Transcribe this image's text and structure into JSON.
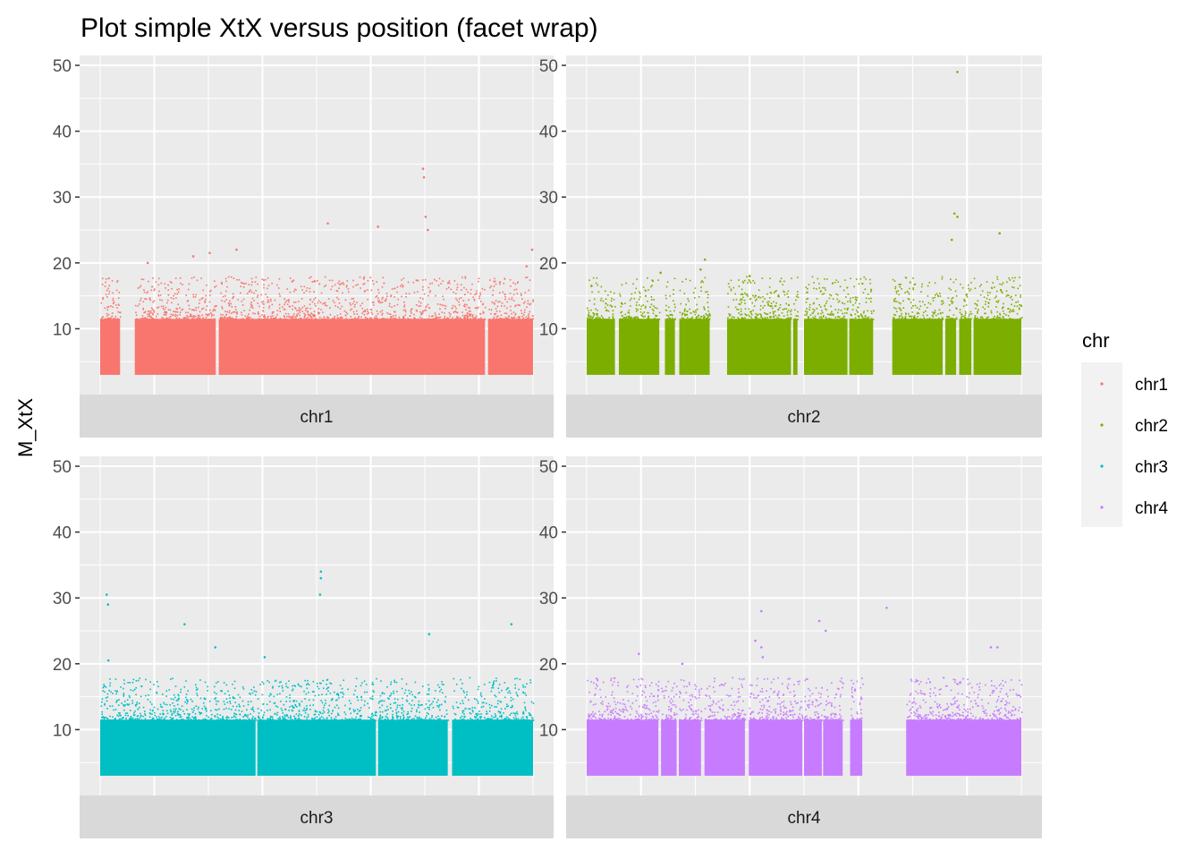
{
  "chart_data": {
    "type": "scatter",
    "title": "Plot simple XtX versus position (facet wrap)",
    "xlabel": "",
    "ylabel": "M_XtX",
    "ylim": [
      0,
      51.5
    ],
    "yticks": [
      10,
      20,
      30,
      40,
      50
    ],
    "x_tick_labels_shown": false,
    "grid": true,
    "facet_strip_position": "bottom",
    "legend": {
      "title": "chr",
      "placement": "right",
      "entries": [
        "chr1",
        "chr2",
        "chr3",
        "chr4"
      ]
    },
    "facets": [
      {
        "name": "chr1",
        "color": "#F8766D",
        "x_segments": [
          [
            0.0,
            0.046
          ],
          [
            0.08,
            0.267
          ],
          [
            0.274,
            0.889
          ],
          [
            0.896,
            1.0
          ]
        ],
        "baseline_range": [
          3.0,
          11.5
        ],
        "notable_points": [
          {
            "x": 0.746,
            "y": 34.3
          },
          {
            "x": 0.748,
            "y": 33.0
          },
          {
            "x": 0.752,
            "y": 27.0
          },
          {
            "x": 0.757,
            "y": 25.0
          },
          {
            "x": 0.526,
            "y": 26.0
          },
          {
            "x": 0.642,
            "y": 25.5
          },
          {
            "x": 0.253,
            "y": 21.5
          },
          {
            "x": 0.315,
            "y": 22.0
          },
          {
            "x": 0.215,
            "y": 21.0
          },
          {
            "x": 0.11,
            "y": 20.0
          },
          {
            "x": 0.998,
            "y": 22.0
          },
          {
            "x": 0.985,
            "y": 19.5
          }
        ]
      },
      {
        "name": "chr2",
        "color": "#7CAE00",
        "x_segments": [
          [
            0.0,
            0.065
          ],
          [
            0.074,
            0.167
          ],
          [
            0.18,
            0.203
          ],
          [
            0.213,
            0.283
          ],
          [
            0.323,
            0.47
          ],
          [
            0.475,
            0.485
          ],
          [
            0.5,
            0.6
          ],
          [
            0.604,
            0.659
          ],
          [
            0.703,
            0.819
          ],
          [
            0.825,
            0.85
          ],
          [
            0.857,
            0.885
          ],
          [
            0.89,
            1.0
          ]
        ],
        "baseline_range": [
          3.0,
          11.5
        ],
        "notable_points": [
          {
            "x": 0.853,
            "y": 49.0
          },
          {
            "x": 0.846,
            "y": 27.5
          },
          {
            "x": 0.853,
            "y": 27.0
          },
          {
            "x": 0.84,
            "y": 23.5
          },
          {
            "x": 0.95,
            "y": 24.5
          },
          {
            "x": 0.272,
            "y": 20.5
          },
          {
            "x": 0.262,
            "y": 19.0
          },
          {
            "x": 0.17,
            "y": 18.5
          },
          {
            "x": 0.011,
            "y": 16.5
          },
          {
            "x": 0.375,
            "y": 18.0
          }
        ]
      },
      {
        "name": "chr3",
        "color": "#00BFC4",
        "x_segments": [
          [
            0.0,
            0.359
          ],
          [
            0.363,
            0.637
          ],
          [
            0.642,
            0.803
          ],
          [
            0.813,
            1.0
          ]
        ],
        "baseline_range": [
          3.0,
          11.5
        ],
        "notable_points": [
          {
            "x": 0.51,
            "y": 34.0
          },
          {
            "x": 0.51,
            "y": 33.0
          },
          {
            "x": 0.508,
            "y": 30.5
          },
          {
            "x": 0.015,
            "y": 30.5
          },
          {
            "x": 0.018,
            "y": 29.0
          },
          {
            "x": 0.195,
            "y": 26.0
          },
          {
            "x": 0.95,
            "y": 26.0
          },
          {
            "x": 0.266,
            "y": 22.5
          },
          {
            "x": 0.76,
            "y": 24.5
          },
          {
            "x": 0.019,
            "y": 20.5
          },
          {
            "x": 0.38,
            "y": 21.0
          }
        ]
      },
      {
        "name": "chr4",
        "color": "#C77CFF",
        "x_segments": [
          [
            0.0,
            0.165
          ],
          [
            0.171,
            0.207
          ],
          [
            0.212,
            0.263
          ],
          [
            0.271,
            0.364
          ],
          [
            0.373,
            0.496
          ],
          [
            0.5,
            0.541
          ],
          [
            0.544,
            0.589
          ],
          [
            0.606,
            0.634
          ],
          [
            0.735,
            1.0
          ]
        ],
        "baseline_range": [
          3.0,
          11.5
        ],
        "notable_points": [
          {
            "x": 0.402,
            "y": 28.0
          },
          {
            "x": 0.69,
            "y": 28.5
          },
          {
            "x": 0.388,
            "y": 23.5
          },
          {
            "x": 0.402,
            "y": 22.5
          },
          {
            "x": 0.405,
            "y": 21.0
          },
          {
            "x": 0.12,
            "y": 21.5
          },
          {
            "x": 0.535,
            "y": 26.5
          },
          {
            "x": 0.55,
            "y": 25.0
          },
          {
            "x": 0.945,
            "y": 22.5
          },
          {
            "x": 0.93,
            "y": 22.5
          },
          {
            "x": 0.22,
            "y": 20.0
          }
        ]
      }
    ]
  }
}
